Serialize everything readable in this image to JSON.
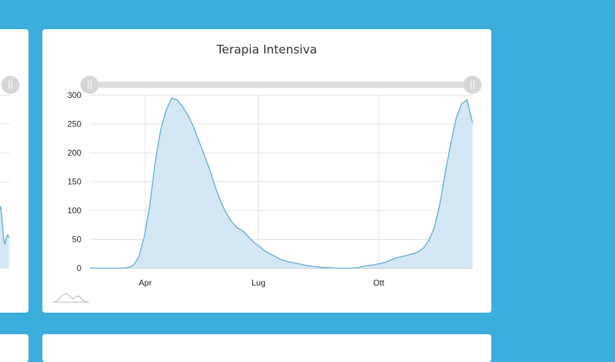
{
  "card": {
    "title": "Terapia Intensiva"
  },
  "colors": {
    "background": "#3baedb",
    "line": "#6fb2d6",
    "fill": "#d3e8f4",
    "slider_track": "#dddddd",
    "slider_handle": "#d6d6d6"
  },
  "icons": {
    "slider_handle": "grip-icon",
    "navigator_preview": "mini-chart-icon"
  },
  "chart_data": {
    "type": "area",
    "title": "Terapia Intensiva",
    "x_ticks": [
      "Apr",
      "Lug",
      "Ott"
    ],
    "y_ticks": [
      "0",
      "50",
      "100",
      "150",
      "200",
      "250",
      "300"
    ],
    "ylim": [
      0,
      300
    ],
    "grid": true,
    "range_selector": {
      "start_fraction": 0.0,
      "end_fraction": 1.0
    },
    "x": [
      0,
      5,
      10,
      15,
      20,
      25,
      30,
      35,
      40,
      45,
      50,
      55,
      60,
      65,
      70,
      75,
      80,
      85,
      90,
      95,
      100,
      105,
      110,
      115,
      120,
      125,
      130,
      135,
      140,
      145,
      150,
      155,
      160,
      165,
      170,
      175,
      180,
      185,
      190,
      195,
      200,
      205,
      210,
      215,
      220,
      225,
      230,
      235,
      240,
      245,
      250,
      255,
      260,
      265,
      270,
      275,
      280,
      285,
      290,
      295,
      300,
      305,
      310,
      315,
      320,
      325,
      330,
      335,
      340,
      345,
      350
    ],
    "values": [
      0,
      0,
      0,
      0,
      0,
      0,
      0,
      1,
      5,
      20,
      55,
      110,
      185,
      240,
      275,
      295,
      292,
      280,
      265,
      245,
      220,
      195,
      170,
      140,
      115,
      95,
      80,
      70,
      65,
      55,
      45,
      38,
      30,
      25,
      20,
      15,
      12,
      10,
      8,
      6,
      4,
      3,
      2,
      1,
      1,
      0,
      0,
      0,
      0,
      1,
      3,
      5,
      6,
      8,
      10,
      14,
      18,
      20,
      22,
      25,
      28,
      35,
      48,
      70,
      110,
      165,
      215,
      260,
      285,
      292,
      252
    ]
  }
}
